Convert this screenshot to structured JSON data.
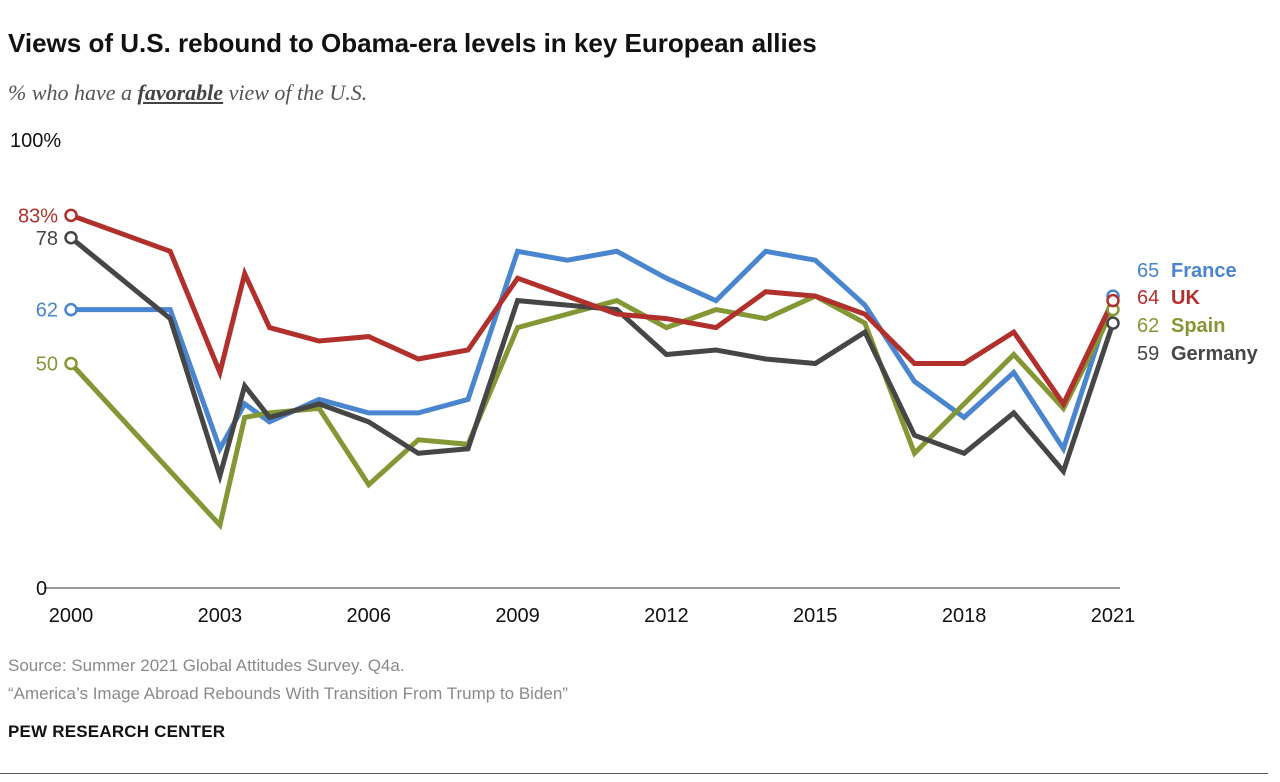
{
  "header": {
    "title": "Views of U.S. rebound to Obama-era levels in key European allies",
    "subtitle_pre": "% who have a ",
    "subtitle_em": "favorable",
    "subtitle_post": " view of the U.S."
  },
  "footer": {
    "source": "Source: Summer 2021 Global Attitudes Survey. Q4a.",
    "note": "“America’s Image Abroad Rebounds With Transition From Trump to Biden”",
    "brand": "PEW RESEARCH CENTER"
  },
  "chart_data": {
    "type": "line",
    "ylim": [
      0,
      100
    ],
    "xlim": [
      2000,
      2021
    ],
    "y_ticks": [
      {
        "value": 100,
        "label": "100%"
      },
      {
        "value": 0,
        "label": "0"
      }
    ],
    "x_ticks": [
      {
        "value": 2000,
        "label": "2000"
      },
      {
        "value": 2003,
        "label": "2003"
      },
      {
        "value": 2006,
        "label": "2006"
      },
      {
        "value": 2009,
        "label": "2009"
      },
      {
        "value": 2012,
        "label": "2012"
      },
      {
        "value": 2015,
        "label": "2015"
      },
      {
        "value": 2018,
        "label": "2018"
      },
      {
        "value": 2021,
        "label": "2021"
      }
    ],
    "grid": false,
    "legend": "direct labels at right end of lines",
    "series": [
      {
        "name": "France",
        "color": "#4a85cf",
        "start_label": "62",
        "end_value": "65",
        "points": [
          [
            2000,
            62
          ],
          [
            2002,
            62
          ],
          [
            2003,
            31
          ],
          [
            2003.5,
            41
          ],
          [
            2004,
            37
          ],
          [
            2005,
            42
          ],
          [
            2006,
            39
          ],
          [
            2007,
            39
          ],
          [
            2008,
            42
          ],
          [
            2009,
            75
          ],
          [
            2010,
            73
          ],
          [
            2011,
            75
          ],
          [
            2012,
            69
          ],
          [
            2013,
            64
          ],
          [
            2014,
            75
          ],
          [
            2015,
            73
          ],
          [
            2016,
            63
          ],
          [
            2017,
            46
          ],
          [
            2018,
            38
          ],
          [
            2019,
            48
          ],
          [
            2020,
            31
          ],
          [
            2021,
            65
          ]
        ]
      },
      {
        "name": "Spain",
        "color": "#849735",
        "start_label": "50",
        "end_value": "62",
        "points": [
          [
            2000,
            50
          ],
          [
            2003,
            14
          ],
          [
            2003.5,
            38
          ],
          [
            2004,
            39
          ],
          [
            2005,
            40
          ],
          [
            2006,
            23
          ],
          [
            2007,
            33
          ],
          [
            2008,
            32
          ],
          [
            2009,
            58
          ],
          [
            2010,
            61
          ],
          [
            2011,
            64
          ],
          [
            2012,
            58
          ],
          [
            2013,
            62
          ],
          [
            2014,
            60
          ],
          [
            2015,
            65
          ],
          [
            2016,
            59
          ],
          [
            2017,
            30
          ],
          [
            2018,
            41
          ],
          [
            2019,
            52
          ],
          [
            2020,
            40
          ],
          [
            2021,
            62
          ]
        ]
      },
      {
        "name": "Germany",
        "color": "#464646",
        "start_label": "78",
        "end_value": "59",
        "points": [
          [
            2000,
            78
          ],
          [
            2002,
            60
          ],
          [
            2003,
            25
          ],
          [
            2003.5,
            45
          ],
          [
            2004,
            38
          ],
          [
            2005,
            41
          ],
          [
            2006,
            37
          ],
          [
            2007,
            30
          ],
          [
            2008,
            31
          ],
          [
            2009,
            64
          ],
          [
            2010,
            63
          ],
          [
            2011,
            62
          ],
          [
            2012,
            52
          ],
          [
            2013,
            53
          ],
          [
            2014,
            51
          ],
          [
            2015,
            50
          ],
          [
            2016,
            57
          ],
          [
            2017,
            34
          ],
          [
            2018,
            30
          ],
          [
            2019,
            39
          ],
          [
            2020,
            26
          ],
          [
            2021,
            59
          ]
        ]
      },
      {
        "name": "UK",
        "color": "#b2302c",
        "start_label": "83%",
        "end_value": "64",
        "points": [
          [
            2000,
            83
          ],
          [
            2002,
            75
          ],
          [
            2003,
            48
          ],
          [
            2003.5,
            70
          ],
          [
            2004,
            58
          ],
          [
            2005,
            55
          ],
          [
            2006,
            56
          ],
          [
            2007,
            51
          ],
          [
            2008,
            53
          ],
          [
            2009,
            69
          ],
          [
            2010,
            65
          ],
          [
            2011,
            61
          ],
          [
            2012,
            60
          ],
          [
            2013,
            58
          ],
          [
            2014,
            66
          ],
          [
            2015,
            65
          ],
          [
            2016,
            61
          ],
          [
            2017,
            50
          ],
          [
            2018,
            50
          ],
          [
            2019,
            57
          ],
          [
            2020,
            41
          ],
          [
            2021,
            64
          ]
        ]
      }
    ],
    "end_labels_order": [
      "France",
      "UK",
      "Spain",
      "Germany"
    ]
  }
}
